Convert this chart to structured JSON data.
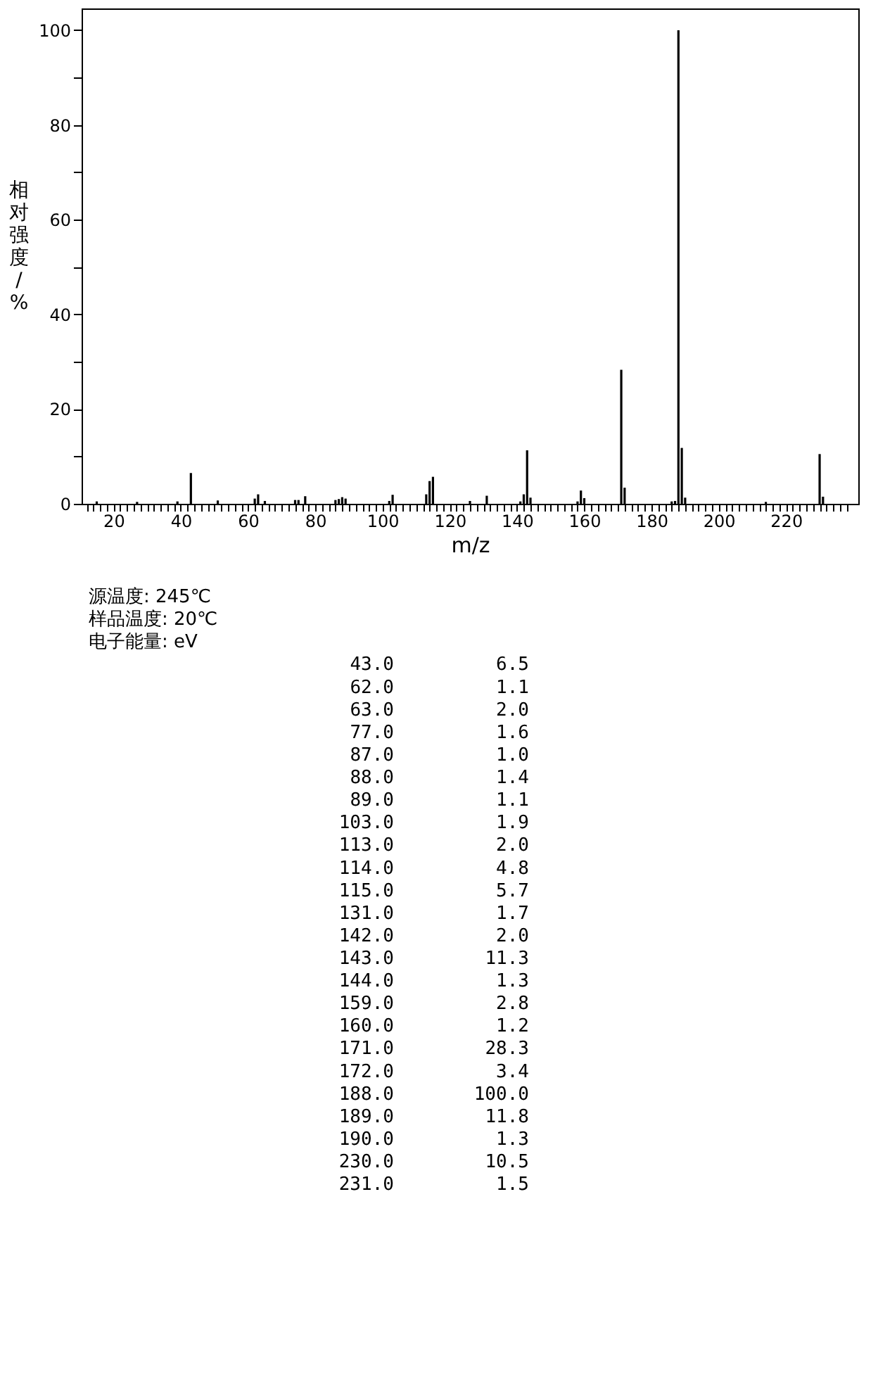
{
  "chart_data": {
    "type": "bar",
    "xlabel": "m/z",
    "ylabel": "相对强度/%",
    "x": [
      15,
      27,
      39,
      43,
      51,
      62,
      63,
      65,
      74,
      75,
      77,
      86,
      87,
      88,
      89,
      102,
      103,
      113,
      114,
      115,
      126,
      131,
      141,
      142,
      143,
      144,
      158,
      159,
      160,
      171,
      172,
      186,
      187,
      188,
      189,
      190,
      214,
      230,
      231
    ],
    "series": [
      {
        "color": "#000000",
        "values": [
          0.5,
          0.4,
          0.5,
          6.5,
          0.7,
          1.1,
          2.0,
          0.6,
          0.8,
          0.8,
          1.6,
          0.8,
          1.0,
          1.4,
          1.1,
          0.6,
          1.9,
          2.0,
          4.8,
          5.7,
          0.6,
          1.7,
          0.5,
          2.0,
          11.3,
          1.3,
          0.5,
          2.8,
          1.2,
          28.3,
          3.4,
          0.5,
          0.6,
          100.0,
          11.8,
          1.3,
          0.4,
          10.5,
          1.5
        ]
      }
    ],
    "xlim": [
      10.5,
      241.5
    ],
    "ylim": [
      0,
      104.6
    ],
    "xticks": [
      {
        "value": 12,
        "label": null
      },
      {
        "value": 14,
        "label": null
      },
      {
        "value": 16,
        "label": null
      },
      {
        "value": 18,
        "label": null
      },
      20,
      {
        "value": 22,
        "label": null
      },
      {
        "value": 24,
        "label": null
      },
      {
        "value": 26,
        "label": null
      },
      {
        "value": 28,
        "label": null
      },
      {
        "value": 30,
        "label": null
      },
      {
        "value": 32,
        "label": null
      },
      {
        "value": 34,
        "label": null
      },
      {
        "value": 36,
        "label": null
      },
      {
        "value": 38,
        "label": null
      },
      40,
      {
        "value": 42,
        "label": null
      },
      {
        "value": 44,
        "label": null
      },
      {
        "value": 46,
        "label": null
      },
      {
        "value": 48,
        "label": null
      },
      {
        "value": 50,
        "label": null
      },
      {
        "value": 52,
        "label": null
      },
      {
        "value": 54,
        "label": null
      },
      {
        "value": 56,
        "label": null
      },
      {
        "value": 58,
        "label": null
      },
      60,
      {
        "value": 62,
        "label": null
      },
      {
        "value": 64,
        "label": null
      },
      {
        "value": 66,
        "label": null
      },
      {
        "value": 68,
        "label": null
      },
      {
        "value": 70,
        "label": null
      },
      {
        "value": 72,
        "label": null
      },
      {
        "value": 74,
        "label": null
      },
      {
        "value": 76,
        "label": null
      },
      {
        "value": 78,
        "label": null
      },
      80,
      {
        "value": 82,
        "label": null
      },
      {
        "value": 84,
        "label": null
      },
      {
        "value": 86,
        "label": null
      },
      {
        "value": 88,
        "label": null
      },
      {
        "value": 90,
        "label": null
      },
      {
        "value": 92,
        "label": null
      },
      {
        "value": 94,
        "label": null
      },
      {
        "value": 96,
        "label": null
      },
      {
        "value": 98,
        "label": null
      },
      100,
      {
        "value": 102,
        "label": null
      },
      {
        "value": 104,
        "label": null
      },
      {
        "value": 106,
        "label": null
      },
      {
        "value": 108,
        "label": null
      },
      {
        "value": 110,
        "label": null
      },
      {
        "value": 112,
        "label": null
      },
      {
        "value": 114,
        "label": null
      },
      {
        "value": 116,
        "label": null
      },
      {
        "value": 118,
        "label": null
      },
      120,
      {
        "value": 122,
        "label": null
      },
      {
        "value": 124,
        "label": null
      },
      {
        "value": 126,
        "label": null
      },
      {
        "value": 128,
        "label": null
      },
      {
        "value": 130,
        "label": null
      },
      {
        "value": 132,
        "label": null
      },
      {
        "value": 134,
        "label": null
      },
      {
        "value": 136,
        "label": null
      },
      {
        "value": 138,
        "label": null
      },
      140,
      {
        "value": 142,
        "label": null
      },
      {
        "value": 144,
        "label": null
      },
      {
        "value": 146,
        "label": null
      },
      {
        "value": 148,
        "label": null
      },
      {
        "value": 150,
        "label": null
      },
      {
        "value": 152,
        "label": null
      },
      {
        "value": 154,
        "label": null
      },
      {
        "value": 156,
        "label": null
      },
      {
        "value": 158,
        "label": null
      },
      160,
      {
        "value": 162,
        "label": null
      },
      {
        "value": 164,
        "label": null
      },
      {
        "value": 166,
        "label": null
      },
      {
        "value": 168,
        "label": null
      },
      {
        "value": 170,
        "label": null
      },
      {
        "value": 172,
        "label": null
      },
      {
        "value": 174,
        "label": null
      },
      {
        "value": 176,
        "label": null
      },
      {
        "value": 178,
        "label": null
      },
      180,
      {
        "value": 182,
        "label": null
      },
      {
        "value": 184,
        "label": null
      },
      {
        "value": 186,
        "label": null
      },
      {
        "value": 188,
        "label": null
      },
      {
        "value": 190,
        "label": null
      },
      {
        "value": 192,
        "label": null
      },
      {
        "value": 194,
        "label": null
      },
      {
        "value": 196,
        "label": null
      },
      {
        "value": 198,
        "label": null
      },
      200,
      {
        "value": 202,
        "label": null
      },
      {
        "value": 204,
        "label": null
      },
      {
        "value": 206,
        "label": null
      },
      {
        "value": 208,
        "label": null
      },
      {
        "value": 210,
        "label": null
      },
      {
        "value": 212,
        "label": null
      },
      {
        "value": 214,
        "label": null
      },
      {
        "value": 216,
        "label": null
      },
      {
        "value": 218,
        "label": null
      },
      220,
      {
        "value": 222,
        "label": null
      },
      {
        "value": 224,
        "label": null
      },
      {
        "value": 226,
        "label": null
      },
      {
        "value": 228,
        "label": null
      },
      {
        "value": 230,
        "label": null
      },
      {
        "value": 232,
        "label": null
      },
      {
        "value": 234,
        "label": null
      },
      {
        "value": 236,
        "label": null
      },
      {
        "value": 238,
        "label": null
      }
    ],
    "yticks": [
      0,
      {
        "value": 10,
        "label": null
      },
      20,
      {
        "value": 30,
        "label": null
      },
      40,
      {
        "value": 50,
        "label": null
      },
      60,
      {
        "value": 70,
        "label": null
      },
      80,
      {
        "value": 90,
        "label": null
      },
      100
    ],
    "grid": false,
    "annotations": [
      "源温度: 245℃",
      "样品温度: 20℃",
      "电子能量: eV",
      "43.0",
      "6.5",
      "62.0",
      "1.1",
      "63.0",
      "2.0",
      "77.0",
      "1.6",
      "87.0",
      "1.0",
      "88.0",
      "1.4",
      "89.0",
      "1.1",
      "103.0",
      "1.9",
      "113.0",
      "2.0",
      "114.0",
      "4.8",
      "115.0",
      "5.7",
      "131.0",
      "1.7",
      "142.0",
      "2.0",
      "143.0",
      "11.3",
      "144.0",
      "1.3",
      "159.0",
      "2.8",
      "160.0",
      "1.2",
      "171.0",
      "28.3",
      "172.0",
      "3.4",
      "188.0",
      "100.0",
      "189.0",
      "11.8",
      "190.0",
      "1.3",
      "230.0",
      "10.5",
      "231.0",
      "1.5"
    ]
  }
}
